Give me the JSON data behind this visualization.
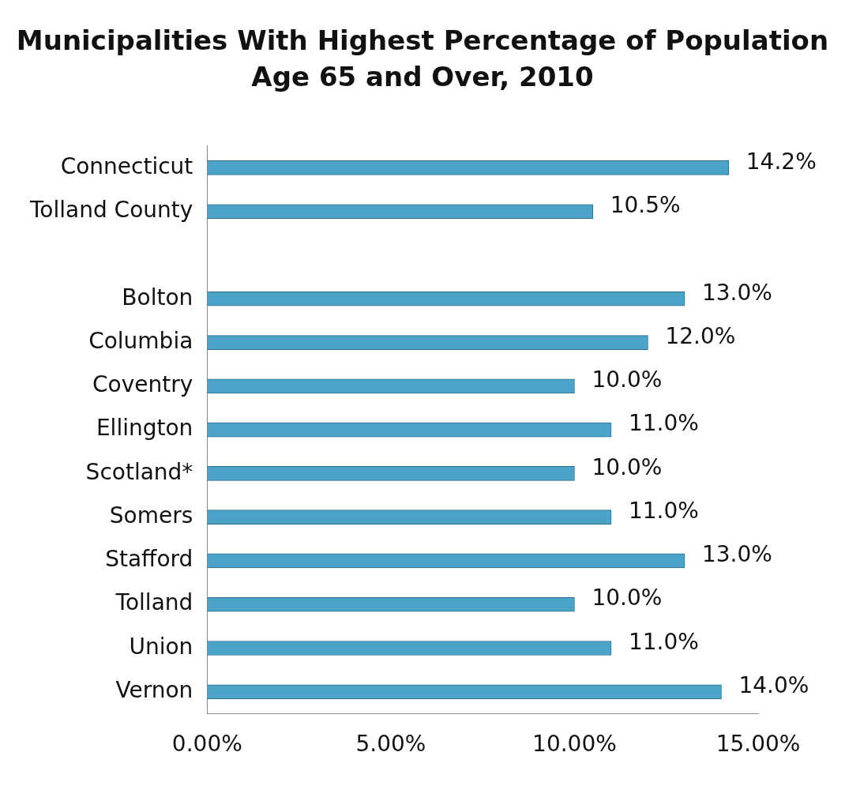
{
  "chart_data": {
    "type": "bar",
    "orientation": "horizontal",
    "title": "Municipalities With Highest Percentage of Population Age 65 and Over, 2010",
    "categories": [
      "Connecticut",
      "Tolland County",
      null,
      "Bolton",
      "Columbia",
      "Coventry",
      "Ellington",
      "Scotland*",
      "Somers",
      "Stafford",
      "Tolland",
      "Union",
      "Vernon"
    ],
    "values": [
      14.2,
      10.5,
      null,
      13.0,
      12.0,
      10.0,
      11.0,
      10.0,
      11.0,
      13.0,
      10.0,
      11.0,
      14.0
    ],
    "value_labels": [
      "14.2%",
      "10.5%",
      null,
      "13.0%",
      "12.0%",
      "10.0%",
      "11.0%",
      "10.0%",
      "11.0%",
      "13.0%",
      "10.0%",
      "11.0%",
      "14.0%"
    ],
    "color": "#4ba3c7",
    "xlim": [
      0,
      15
    ],
    "xticks": [
      {
        "value": 0,
        "label": "0.00%"
      },
      {
        "value": 5,
        "label": "5.00%"
      },
      {
        "value": 10,
        "label": "10.00%"
      },
      {
        "value": 15,
        "label": "15.00%"
      }
    ],
    "grid": false,
    "legend": false
  }
}
